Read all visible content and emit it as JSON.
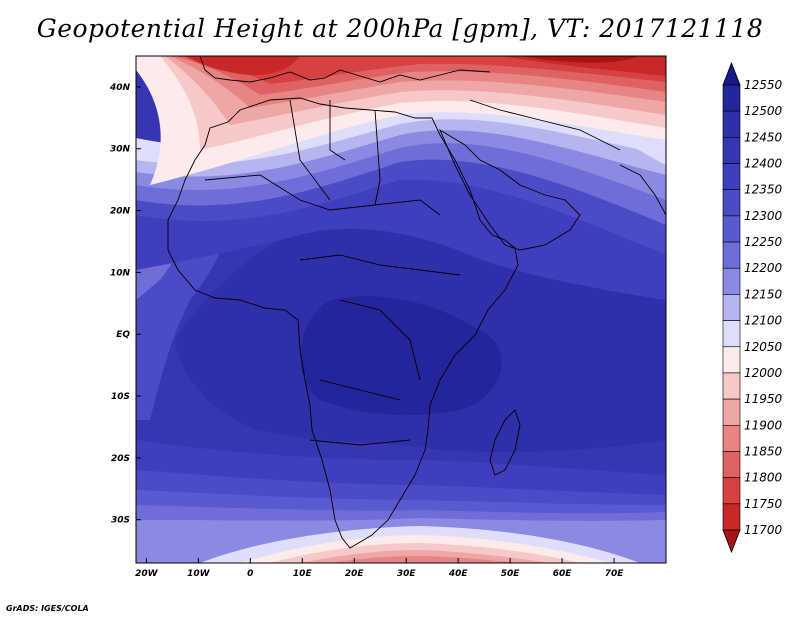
{
  "title": "Geopotential Height at 200hPa [gpm], VT: 2017121118",
  "footer": "GrADS: IGES/COLA",
  "map": {
    "lon_range": [
      -22,
      80
    ],
    "lat_range": [
      -37,
      45
    ],
    "x_ticks": [
      "20W",
      "10W",
      "0",
      "10E",
      "20E",
      "30E",
      "40E",
      "50E",
      "60E",
      "70E"
    ],
    "x_tick_values": [
      -20,
      -10,
      0,
      10,
      20,
      30,
      40,
      50,
      60,
      70
    ],
    "y_ticks": [
      "40N",
      "30N",
      "20N",
      "10N",
      "EQ",
      "10S",
      "20S",
      "30S"
    ],
    "y_tick_values": [
      40,
      30,
      20,
      10,
      0,
      -10,
      -20,
      -30
    ]
  },
  "colorbar": {
    "levels": [
      "12550",
      "12500",
      "12450",
      "12400",
      "12350",
      "12300",
      "12250",
      "12200",
      "12150",
      "12100",
      "12050",
      "12000",
      "11950",
      "11900",
      "11850",
      "11800",
      "11750",
      "11700"
    ],
    "colors": [
      "#1a1a8c",
      "#25259b",
      "#2f2fa9",
      "#3636b3",
      "#3f3fbd",
      "#4b4bc6",
      "#5a5ad0",
      "#6e6ed9",
      "#8a8ae3",
      "#b5b5f0",
      "#dedefa",
      "#fdeaea",
      "#f6c8c8",
      "#efa6a6",
      "#e78484",
      "#df6262",
      "#d74141",
      "#c92828",
      "#a81414"
    ]
  }
}
